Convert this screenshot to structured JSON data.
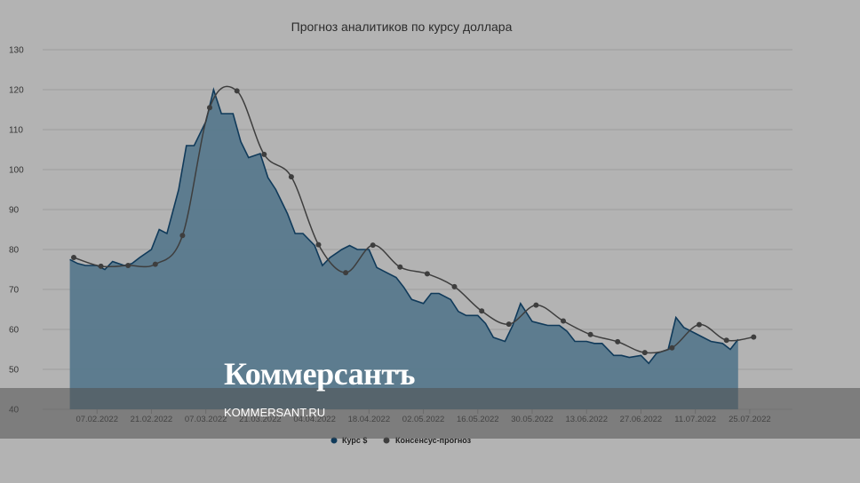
{
  "chart_data": {
    "type": "area",
    "title": "Прогноз аналитиков по курсу доллара",
    "xlabel": "",
    "ylabel": "",
    "ylim": [
      40,
      130
    ],
    "yticks": [
      40,
      50,
      60,
      70,
      80,
      90,
      100,
      110,
      120,
      130
    ],
    "xlim": [
      "2022-01-24",
      "2022-08-05"
    ],
    "xticks": [
      "07.02.2022",
      "21.02.2022",
      "07.03.2022",
      "21.03.2022",
      "04.04.2022",
      "18.04.2022",
      "02.05.2022",
      "16.05.2022",
      "30.05.2022",
      "13.06.2022",
      "27.06.2022",
      "11.07.2022",
      "25.07.2022"
    ],
    "grid": true,
    "legend_position": "bottom",
    "colors": {
      "area_fill": "#58798d",
      "area_line": "#103a5a",
      "forecast": "#3e3e3e"
    },
    "series": [
      {
        "name": "Курс $",
        "points": [
          [
            "2022-01-31",
            77.5
          ],
          [
            "2022-02-02",
            76.5
          ],
          [
            "2022-02-04",
            76.0
          ],
          [
            "2022-02-07",
            76.0
          ],
          [
            "2022-02-09",
            75.0
          ],
          [
            "2022-02-11",
            77.0
          ],
          [
            "2022-02-14",
            76.0
          ],
          [
            "2022-02-16",
            76.5
          ],
          [
            "2022-02-18",
            78.0
          ],
          [
            "2022-02-21",
            80.0
          ],
          [
            "2022-02-23",
            85.0
          ],
          [
            "2022-02-25",
            84.0
          ],
          [
            "2022-02-28",
            95.0
          ],
          [
            "2022-03-02",
            106.0
          ],
          [
            "2022-03-04",
            106.0
          ],
          [
            "2022-03-07",
            112.0
          ],
          [
            "2022-03-09",
            120.0
          ],
          [
            "2022-03-11",
            114.0
          ],
          [
            "2022-03-14",
            114.0
          ],
          [
            "2022-03-16",
            107.0
          ],
          [
            "2022-03-18",
            103.0
          ],
          [
            "2022-03-21",
            104.0
          ],
          [
            "2022-03-23",
            98.0
          ],
          [
            "2022-03-25",
            95.0
          ],
          [
            "2022-03-28",
            89.0
          ],
          [
            "2022-03-30",
            84.0
          ],
          [
            "2022-04-01",
            84.0
          ],
          [
            "2022-04-04",
            81.0
          ],
          [
            "2022-04-06",
            76.0
          ],
          [
            "2022-04-08",
            78.0
          ],
          [
            "2022-04-11",
            80.0
          ],
          [
            "2022-04-13",
            81.0
          ],
          [
            "2022-04-15",
            80.0
          ],
          [
            "2022-04-18",
            80.0
          ],
          [
            "2022-04-20",
            75.5
          ],
          [
            "2022-04-22",
            74.5
          ],
          [
            "2022-04-25",
            73.0
          ],
          [
            "2022-04-27",
            70.5
          ],
          [
            "2022-04-29",
            67.5
          ],
          [
            "2022-05-02",
            66.5
          ],
          [
            "2022-05-04",
            69.0
          ],
          [
            "2022-05-06",
            69.0
          ],
          [
            "2022-05-09",
            67.5
          ],
          [
            "2022-05-11",
            64.5
          ],
          [
            "2022-05-13",
            63.5
          ],
          [
            "2022-05-16",
            63.5
          ],
          [
            "2022-05-18",
            61.5
          ],
          [
            "2022-05-20",
            58.0
          ],
          [
            "2022-05-23",
            57.0
          ],
          [
            "2022-05-25",
            61.0
          ],
          [
            "2022-05-27",
            66.5
          ],
          [
            "2022-05-30",
            62.0
          ],
          [
            "2022-06-01",
            61.5
          ],
          [
            "2022-06-03",
            61.0
          ],
          [
            "2022-06-06",
            61.0
          ],
          [
            "2022-06-08",
            59.5
          ],
          [
            "2022-06-10",
            57.0
          ],
          [
            "2022-06-13",
            57.0
          ],
          [
            "2022-06-15",
            56.5
          ],
          [
            "2022-06-17",
            56.5
          ],
          [
            "2022-06-20",
            53.5
          ],
          [
            "2022-06-22",
            53.5
          ],
          [
            "2022-06-24",
            53.0
          ],
          [
            "2022-06-27",
            53.5
          ],
          [
            "2022-06-29",
            51.5
          ],
          [
            "2022-07-01",
            54.0
          ],
          [
            "2022-07-04",
            55.0
          ],
          [
            "2022-07-06",
            63.0
          ],
          [
            "2022-07-08",
            60.5
          ],
          [
            "2022-07-11",
            59.0
          ],
          [
            "2022-07-13",
            58.0
          ],
          [
            "2022-07-15",
            57.0
          ],
          [
            "2022-07-18",
            56.5
          ],
          [
            "2022-07-20",
            55.0
          ],
          [
            "2022-07-22",
            57.5
          ]
        ]
      },
      {
        "name": "Консенсус-прогноз",
        "points": [
          [
            "2022-02-01",
            78.0
          ],
          [
            "2022-02-08",
            75.8
          ],
          [
            "2022-02-15",
            76.0
          ],
          [
            "2022-02-22",
            76.3
          ],
          [
            "2022-03-01",
            83.5
          ],
          [
            "2022-03-08",
            115.5
          ],
          [
            "2022-03-15",
            119.7
          ],
          [
            "2022-03-22",
            103.8
          ],
          [
            "2022-03-29",
            98.2
          ],
          [
            "2022-04-05",
            81.2
          ],
          [
            "2022-04-12",
            74.2
          ],
          [
            "2022-04-19",
            81.1
          ],
          [
            "2022-04-26",
            75.6
          ],
          [
            "2022-05-03",
            73.9
          ],
          [
            "2022-05-10",
            70.7
          ],
          [
            "2022-05-17",
            64.6
          ],
          [
            "2022-05-24",
            61.3
          ],
          [
            "2022-05-31",
            66.1
          ],
          [
            "2022-06-07",
            62.1
          ],
          [
            "2022-06-14",
            58.7
          ],
          [
            "2022-06-21",
            56.9
          ],
          [
            "2022-06-28",
            54.2
          ],
          [
            "2022-07-05",
            55.4
          ],
          [
            "2022-07-12",
            61.2
          ],
          [
            "2022-07-19",
            57.3
          ],
          [
            "2022-07-26",
            58.1
          ]
        ]
      }
    ]
  },
  "watermark": {
    "logo": "Коммерсантъ",
    "url": "KOMMERSANT.RU"
  }
}
